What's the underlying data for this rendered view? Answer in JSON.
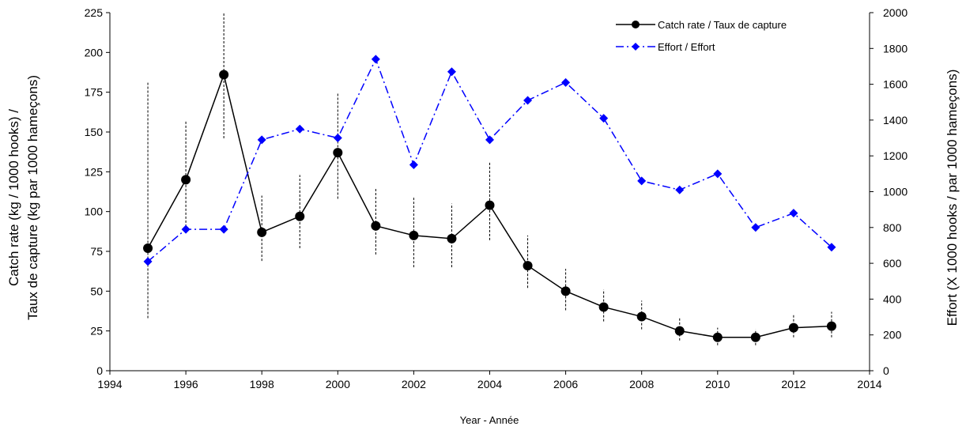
{
  "chart_data": {
    "type": "line",
    "xlabel": "Year - Année",
    "ylabel_left_line1": "Catch rate (kg / 1000 hooks) /",
    "ylabel_left_line2": "Taux de capture (kg par 1000 hameçons)",
    "ylabel_right": "Effort (X 1000  hooks  / par 1000 hameçons)",
    "xlim": [
      1994,
      2014
    ],
    "x_ticks": [
      "1994",
      "1996",
      "1998",
      "2000",
      "2002",
      "2004",
      "2006",
      "2008",
      "2010",
      "2012",
      "2014"
    ],
    "ylim_left": [
      0,
      225
    ],
    "y_left_ticks": [
      "0",
      "25",
      "50",
      "75",
      "100",
      "125",
      "150",
      "175",
      "200",
      "225"
    ],
    "ylim_right": [
      0,
      2000
    ],
    "y_right_ticks": [
      "0",
      "200",
      "400",
      "600",
      "800",
      "1000",
      "1200",
      "1400",
      "1600",
      "1800",
      "2000"
    ],
    "legend_position": "top-right",
    "grid": false,
    "series": [
      {
        "name": "Catch rate / Taux de capture",
        "axis": "left",
        "color": "#000000",
        "marker": "circle",
        "line_style": "solid",
        "x": [
          1995,
          1996,
          1997,
          1998,
          1999,
          2000,
          2001,
          2002,
          2003,
          2004,
          2005,
          2006,
          2007,
          2008,
          2009,
          2010,
          2011,
          2012,
          2013
        ],
        "y": [
          77,
          120,
          186,
          87,
          97,
          137,
          91,
          85,
          83,
          104,
          66,
          50,
          40,
          34,
          25,
          21,
          21,
          27,
          28
        ],
        "error_low": [
          33,
          88,
          146,
          69,
          77,
          108,
          73,
          65,
          65,
          82,
          52,
          38,
          31,
          26,
          19,
          16,
          16,
          21,
          21
        ],
        "error_high": [
          181,
          157,
          225,
          110,
          123,
          175,
          115,
          109,
          105,
          131,
          85,
          64,
          51,
          44,
          33,
          27,
          26,
          35,
          37
        ]
      },
      {
        "name": "Effort / Effort",
        "axis": "right",
        "color": "#0000ff",
        "marker": "diamond",
        "line_style": "dashdot",
        "x": [
          1995,
          1996,
          1997,
          1998,
          1999,
          2000,
          2001,
          2002,
          2003,
          2004,
          2005,
          2006,
          2007,
          2008,
          2009,
          2010,
          2011,
          2012,
          2013
        ],
        "y": [
          610,
          790,
          790,
          1290,
          1350,
          1300,
          1740,
          1150,
          1670,
          1290,
          1510,
          1610,
          1410,
          1060,
          1010,
          1100,
          800,
          880,
          690
        ]
      }
    ]
  }
}
